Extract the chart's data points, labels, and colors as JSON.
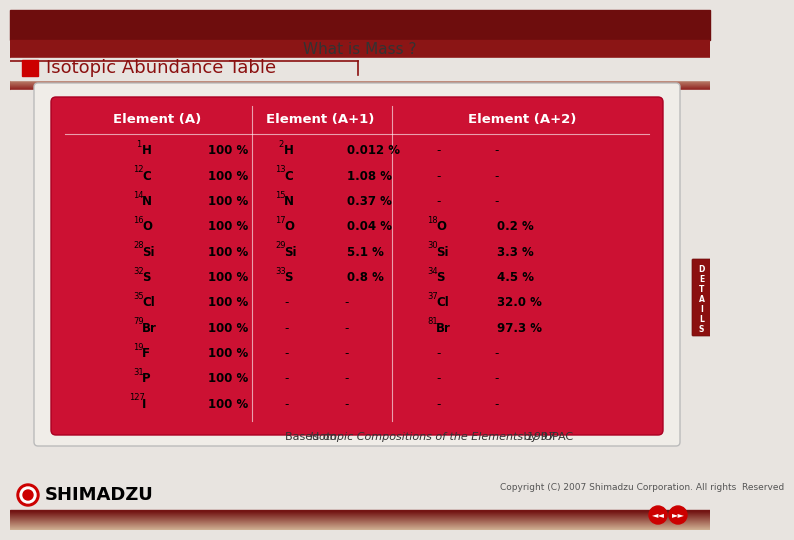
{
  "title": "What is Mass ?",
  "subtitle": "Isotopic Abundance Table",
  "bg_top": "#7a1010",
  "bg_mid": "#c8a090",
  "bg_main": "#e8e4e0",
  "table_bg": "#cc1133",
  "header_color": "#ffffff",
  "footer_note": "Based on ",
  "footer_italic": "Isotopic Compositions of the Elements 1997",
  "footer_end": " by IUPAC",
  "shimadzu": "SHIMADZU",
  "copyright": "Copyright (C) 2007 Shimadzu Corporation. All rights  Reserved",
  "col_headers": [
    "Element (A)",
    "Element (A+1)",
    "Element (A+2)"
  ],
  "rows": [
    {
      "elem_a": "H",
      "mass_a": "1",
      "pct_a": "100 %",
      "elem_a1": "H",
      "mass_a1": "2",
      "pct_a1": "0.012 %",
      "elem_a2": "-",
      "mass_a2": "",
      "pct_a2": "-"
    },
    {
      "elem_a": "C",
      "mass_a": "12",
      "pct_a": "100 %",
      "elem_a1": "C",
      "mass_a1": "13",
      "pct_a1": "1.08 %",
      "elem_a2": "-",
      "mass_a2": "",
      "pct_a2": "-"
    },
    {
      "elem_a": "N",
      "mass_a": "14",
      "pct_a": "100 %",
      "elem_a1": "N",
      "mass_a1": "15",
      "pct_a1": "0.37 %",
      "elem_a2": "-",
      "mass_a2": "",
      "pct_a2": "-"
    },
    {
      "elem_a": "O",
      "mass_a": "16",
      "pct_a": "100 %",
      "elem_a1": "O",
      "mass_a1": "17",
      "pct_a1": "0.04 %",
      "elem_a2": "O",
      "mass_a2": "18",
      "pct_a2": "0.2 %"
    },
    {
      "elem_a": "Si",
      "mass_a": "28",
      "pct_a": "100 %",
      "elem_a1": "Si",
      "mass_a1": "29",
      "pct_a1": "5.1 %",
      "elem_a2": "Si",
      "mass_a2": "30",
      "pct_a2": "3.3 %"
    },
    {
      "elem_a": "S",
      "mass_a": "32",
      "pct_a": "100 %",
      "elem_a1": "S",
      "mass_a1": "33",
      "pct_a1": "0.8 %",
      "elem_a2": "S",
      "mass_a2": "34",
      "pct_a2": "4.5 %"
    },
    {
      "elem_a": "Cl",
      "mass_a": "35",
      "pct_a": "100 %",
      "elem_a1": "-",
      "mass_a1": "",
      "pct_a1": "-",
      "elem_a2": "Cl",
      "mass_a2": "37",
      "pct_a2": "32.0 %"
    },
    {
      "elem_a": "Br",
      "mass_a": "79",
      "pct_a": "100 %",
      "elem_a1": "-",
      "mass_a1": "",
      "pct_a1": "-",
      "elem_a2": "Br",
      "mass_a2": "81",
      "pct_a2": "97.3 %"
    },
    {
      "elem_a": "F",
      "mass_a": "19",
      "pct_a": "100 %",
      "elem_a1": "-",
      "mass_a1": "",
      "pct_a1": "-",
      "elem_a2": "-",
      "mass_a2": "",
      "pct_a2": "-"
    },
    {
      "elem_a": "P",
      "mass_a": "31",
      "pct_a": "100 %",
      "elem_a1": "-",
      "mass_a1": "",
      "pct_a1": "-",
      "elem_a2": "-",
      "mass_a2": "",
      "pct_a2": "-"
    },
    {
      "elem_a": "I",
      "mass_a": "127",
      "pct_a": "100 %",
      "elem_a1": "-",
      "mass_a1": "",
      "pct_a1": "-",
      "elem_a2": "-",
      "mass_a2": "",
      "pct_a2": "-"
    }
  ]
}
